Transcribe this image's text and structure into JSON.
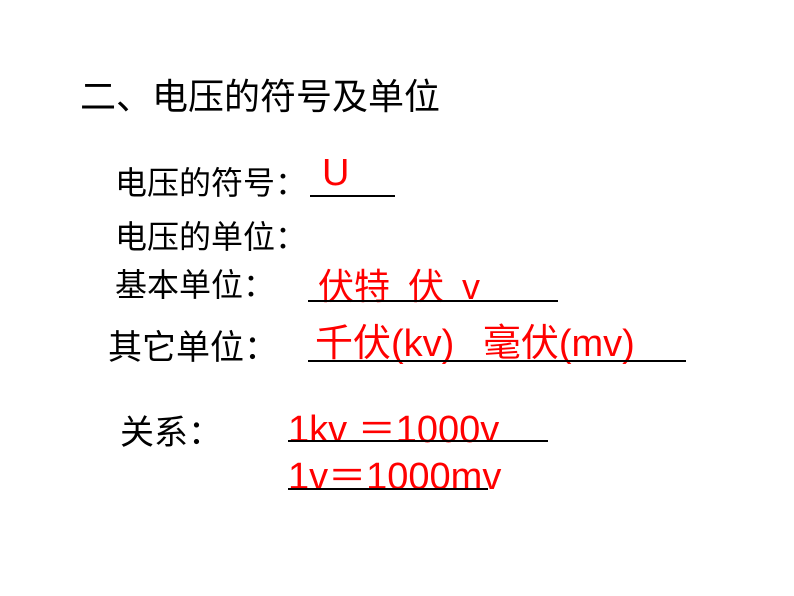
{
  "heading": "二、电压的符号及单位",
  "symbol": {
    "label": "电压的符号：",
    "value": "U"
  },
  "unit_label": "电压的单位：",
  "basic_unit": {
    "label": "基本单位：",
    "value_cn1": "伏特",
    "value_cn2": "伏",
    "value_en": "v"
  },
  "other_unit": {
    "label": "其它单位：",
    "kv_cn": "千伏",
    "kv_en": "(kv)",
    "mv_cn": "毫伏",
    "mv_en": "(mv)"
  },
  "relation": {
    "label": "关系：",
    "line1": "1kv ＝1000v",
    "line2": "1v＝1000mv"
  },
  "colors": {
    "text_black": "#000000",
    "text_red": "#ff0000",
    "background": "#ffffff"
  }
}
